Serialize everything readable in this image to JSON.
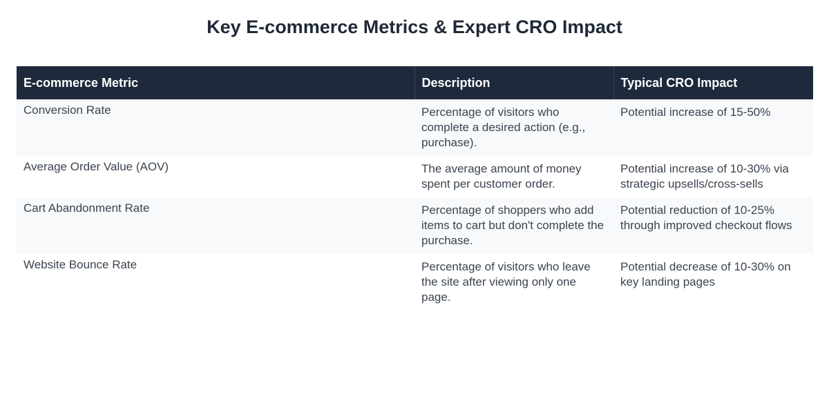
{
  "title": "Key E-commerce Metrics & Expert CRO Impact",
  "table": {
    "headers": [
      "E-commerce Metric",
      "Description",
      "Typical CRO Impact"
    ],
    "rows": [
      {
        "metric": "Conversion Rate",
        "description": "Percentage of visitors who complete a desired action (e.g., purchase).",
        "impact": "Potential increase of 15-50%"
      },
      {
        "metric": "Average Order Value (AOV)",
        "description": "The average amount of money spent per customer order.",
        "impact": "Potential increase of 10-30% via strategic upsells/cross-sells"
      },
      {
        "metric": "Cart Abandonment Rate",
        "description": "Percentage of shoppers who add items to cart but don't complete the purchase.",
        "impact": "Potential reduction of 10-25% through improved checkout flows"
      },
      {
        "metric": "Website Bounce Rate",
        "description": "Percentage of visitors who leave the site after viewing only one page.",
        "impact": "Potential decrease of 10-30% on key landing pages"
      }
    ]
  }
}
